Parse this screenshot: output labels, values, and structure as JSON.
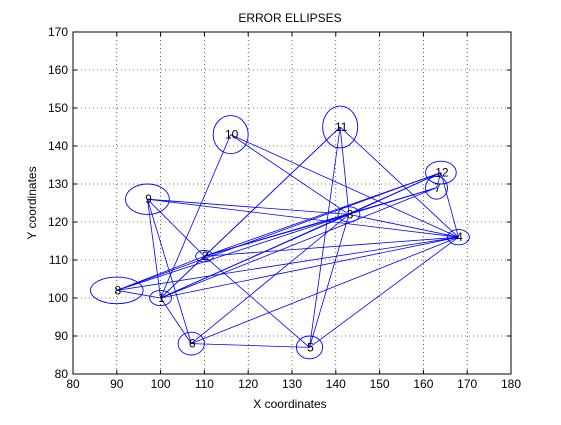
{
  "chart_data": {
    "type": "scatter",
    "title": "ERROR ELLIPSES",
    "xlabel": "X coordinates",
    "ylabel": "Y coordinates",
    "xlim": [
      80,
      180
    ],
    "ylim": [
      80,
      170
    ],
    "xticks": [
      80,
      90,
      100,
      110,
      120,
      130,
      140,
      150,
      160,
      170,
      180
    ],
    "yticks": [
      80,
      90,
      100,
      110,
      120,
      130,
      140,
      150,
      160,
      170
    ],
    "grid": true,
    "line_color": "#0000ff",
    "points": [
      {
        "label": "1",
        "x": 100,
        "y": 100,
        "rx": 2.5,
        "ry": 2
      },
      {
        "label": "2",
        "x": 110,
        "y": 111,
        "rx": 2,
        "ry": 1.5
      },
      {
        "label": "3",
        "x": 143,
        "y": 122,
        "rx": 2.5,
        "ry": 2
      },
      {
        "label": "4",
        "x": 168,
        "y": 116,
        "rx": 2.5,
        "ry": 2
      },
      {
        "label": "5",
        "x": 134,
        "y": 87,
        "rx": 3,
        "ry": 3
      },
      {
        "label": "6",
        "x": 107,
        "y": 88,
        "rx": 3,
        "ry": 3
      },
      {
        "label": "7",
        "x": 163,
        "y": 129,
        "rx": 2.5,
        "ry": 3
      },
      {
        "label": "8",
        "x": 90,
        "y": 102,
        "rx": 6,
        "ry": 3.5
      },
      {
        "label": "9",
        "x": 97,
        "y": 126,
        "rx": 5,
        "ry": 4
      },
      {
        "label": "10",
        "x": 116,
        "y": 143,
        "rx": 4,
        "ry": 5
      },
      {
        "label": "11",
        "x": 141,
        "y": 145,
        "rx": 4,
        "ry": 5.5
      },
      {
        "label": "12",
        "x": 164,
        "y": 133,
        "rx": 3.5,
        "ry": 3
      }
    ],
    "connections": [
      [
        1,
        2
      ],
      [
        1,
        3
      ],
      [
        1,
        4
      ],
      [
        1,
        6
      ],
      [
        1,
        7
      ],
      [
        1,
        8
      ],
      [
        1,
        9
      ],
      [
        1,
        10
      ],
      [
        1,
        12
      ],
      [
        1,
        11
      ],
      [
        8,
        2
      ],
      [
        8,
        3
      ],
      [
        8,
        4
      ],
      [
        8,
        12
      ],
      [
        2,
        3
      ],
      [
        2,
        4
      ],
      [
        2,
        7
      ],
      [
        2,
        12
      ],
      [
        2,
        9
      ],
      [
        2,
        11
      ],
      [
        2,
        5
      ],
      [
        3,
        4
      ],
      [
        3,
        9
      ],
      [
        3,
        10
      ],
      [
        3,
        11
      ],
      [
        3,
        5
      ],
      [
        3,
        6
      ],
      [
        3,
        12
      ],
      [
        3,
        7
      ],
      [
        4,
        9
      ],
      [
        4,
        10
      ],
      [
        4,
        11
      ],
      [
        4,
        12
      ],
      [
        4,
        6
      ],
      [
        4,
        5
      ],
      [
        6,
        5
      ],
      [
        5,
        11
      ],
      [
        7,
        12
      ],
      [
        9,
        6
      ]
    ]
  }
}
